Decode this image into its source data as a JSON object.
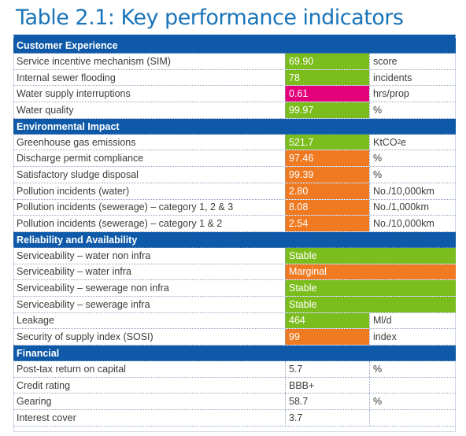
{
  "title": "Table 2.1: Key performance indicators",
  "colors": {
    "section_bg": "#0f5aa8",
    "green": "#7cbd1e",
    "magenta": "#e40079",
    "orange": "#ef7a22"
  },
  "sections": [
    {
      "heading": "Customer Experience",
      "rows": [
        {
          "name": "Service incentive mechanism (SIM)",
          "value": "69.90",
          "unit": "score",
          "status": "green"
        },
        {
          "name": "Internal sewer flooding",
          "value": "78",
          "unit": "incidents",
          "status": "green"
        },
        {
          "name": "Water supply interruptions",
          "value": "0.61",
          "unit": "hrs/prop",
          "status": "magenta"
        },
        {
          "name": "Water quality",
          "value": "99.97",
          "unit": "%",
          "status": "green"
        }
      ]
    },
    {
      "heading": "Environmental Impact",
      "rows": [
        {
          "name": "Greenhouse gas emissions",
          "value": "521.7",
          "unit": "KtCO",
          "unit_sub": "2",
          "unit_suffix": "e",
          "status": "green"
        },
        {
          "name": "Discharge permit compliance",
          "value": "97.46",
          "unit": "%",
          "status": "orange"
        },
        {
          "name": "Satisfactory  sludge disposal",
          "value": "99.39",
          "unit": "%",
          "status": "orange"
        },
        {
          "name": "Pollution incidents (water)",
          "value": "2.80",
          "unit": "No./10,000km",
          "status": "orange"
        },
        {
          "name": "Pollution incidents (sewerage) – category 1, 2 & 3",
          "value": "8.08",
          "unit": "No./1,000km",
          "status": "orange"
        },
        {
          "name": "Pollution incidents (sewerage) – category 1 & 2",
          "value": "2.54",
          "unit": "No./10,000km",
          "status": "orange"
        }
      ]
    },
    {
      "heading": "Reliability and Availability",
      "rows": [
        {
          "name": "Serviceability – water non infra",
          "value": "Stable",
          "unit": "",
          "status": "green",
          "wide": true
        },
        {
          "name": "Serviceability – water infra",
          "value": "Marginal",
          "unit": "",
          "status": "orange",
          "wide": true
        },
        {
          "name": "Serviceability – sewerage non infra",
          "value": "Stable",
          "unit": "",
          "status": "green",
          "wide": true
        },
        {
          "name": "Serviceability – sewerage infra",
          "value": "Stable",
          "unit": "",
          "status": "green",
          "wide": true
        },
        {
          "name": "Leakage",
          "value": "464",
          "unit": "Ml/d",
          "status": "green"
        },
        {
          "name": "Security of supply index (SOSI)",
          "value": "99",
          "unit": "index",
          "status": "orange"
        }
      ]
    },
    {
      "heading": "Financial",
      "rows": [
        {
          "name": "Post-tax return on capital",
          "value": "5.7",
          "unit": "%",
          "status": ""
        },
        {
          "name": "Credit rating",
          "value": "BBB+",
          "unit": "",
          "status": ""
        },
        {
          "name": "Gearing",
          "value": "58.7",
          "unit": "%",
          "status": ""
        },
        {
          "name": "Interest cover",
          "value": "3.7",
          "unit": "",
          "status": ""
        }
      ]
    }
  ]
}
